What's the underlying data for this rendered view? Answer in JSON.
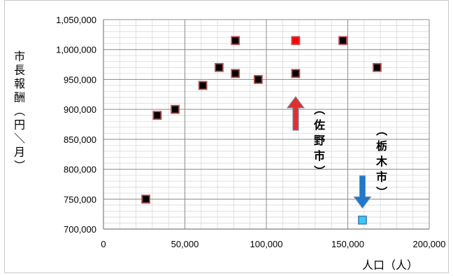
{
  "chart_data": {
    "type": "scatter",
    "title": "",
    "xlabel": "人口（人）",
    "ylabel": "市長報酬（円／月）",
    "xlim": [
      0,
      200000
    ],
    "ylim": [
      700000,
      1050000
    ],
    "x_ticks": [
      "0",
      "50,000",
      "100,000",
      "150,000",
      "200,000"
    ],
    "y_ticks": [
      "700,000",
      "750,000",
      "800,000",
      "850,000",
      "900,000",
      "950,000",
      "1,000,000",
      "1,050,000"
    ],
    "x_tick_values": [
      0,
      50000,
      100000,
      150000,
      200000
    ],
    "y_tick_values": [
      700000,
      750000,
      800000,
      850000,
      900000,
      950000,
      1000000,
      1050000
    ],
    "grid": true,
    "series": [
      {
        "points": [
          {
            "x": 26000,
            "y": 750000
          },
          {
            "x": 33000,
            "y": 890000
          },
          {
            "x": 44000,
            "y": 900000
          },
          {
            "x": 61000,
            "y": 940000
          },
          {
            "x": 71000,
            "y": 970000
          },
          {
            "x": 81000,
            "y": 960000
          },
          {
            "x": 81000,
            "y": 1015000
          },
          {
            "x": 95000,
            "y": 950000
          },
          {
            "x": 118000,
            "y": 960000
          },
          {
            "x": 147000,
            "y": 1015000
          },
          {
            "x": 168000,
            "y": 970000
          }
        ],
        "color": "#000000",
        "edge": "#c0504d"
      },
      {
        "points": [
          {
            "x": 118000,
            "y": 1015000
          }
        ],
        "color": "#ff0000",
        "edge": "#c0504d"
      },
      {
        "points": [
          {
            "x": 159000,
            "y": 715000
          }
        ],
        "color": "#33ccff",
        "edge": "#4f81bd"
      }
    ],
    "annotations": [
      {
        "text": "（佐野市）",
        "x": 118000,
        "arrow": "up",
        "arrow_color": "#e0302e"
      },
      {
        "text": "（栃木市）",
        "x": 159000,
        "arrow": "down",
        "arrow_color": "#1f78c8"
      }
    ]
  }
}
